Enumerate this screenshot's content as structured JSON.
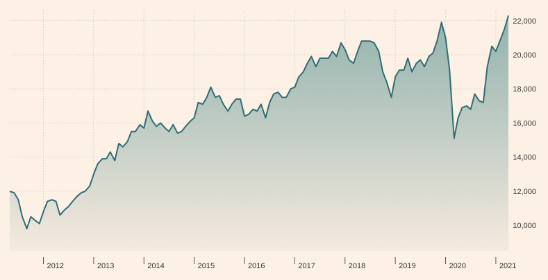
{
  "chart_data": {
    "type": "area",
    "title": "",
    "xlabel": "",
    "ylabel": "",
    "x_ticks": [
      "2012",
      "2013",
      "2014",
      "2015",
      "2016",
      "2017",
      "2018",
      "2019",
      "2020",
      "2021"
    ],
    "y_ticks": [
      "10,000",
      "12,000",
      "14,000",
      "16,000",
      "18,000",
      "20,000",
      "22,000"
    ],
    "y_tick_values": [
      10000,
      12000,
      14000,
      16000,
      18000,
      20000,
      22000
    ],
    "xlim": [
      2011.33,
      2021.25
    ],
    "ylim": [
      8500,
      22600
    ],
    "grid": true,
    "colors": {
      "line": "#2e6e73",
      "area_top": "#7fa8a3",
      "area_bottom": "#f5e9de",
      "background": "#fdf1e6",
      "grid": "#c9c3bb"
    },
    "series": [
      {
        "points": [
          [
            2011.33,
            12000
          ],
          [
            2011.42,
            11900
          ],
          [
            2011.5,
            11500
          ],
          [
            2011.58,
            10500
          ],
          [
            2011.67,
            9800
          ],
          [
            2011.75,
            10500
          ],
          [
            2011.83,
            10300
          ],
          [
            2011.92,
            10100
          ],
          [
            2012.0,
            10800
          ],
          [
            2012.08,
            11400
          ],
          [
            2012.17,
            11500
          ],
          [
            2012.25,
            11400
          ],
          [
            2012.33,
            10600
          ],
          [
            2012.42,
            10900
          ],
          [
            2012.5,
            11100
          ],
          [
            2012.58,
            11400
          ],
          [
            2012.67,
            11700
          ],
          [
            2012.75,
            11900
          ],
          [
            2012.83,
            12000
          ],
          [
            2012.92,
            12300
          ],
          [
            2013.0,
            13000
          ],
          [
            2013.08,
            13600
          ],
          [
            2013.17,
            13900
          ],
          [
            2013.25,
            13900
          ],
          [
            2013.33,
            14300
          ],
          [
            2013.42,
            13800
          ],
          [
            2013.5,
            14800
          ],
          [
            2013.58,
            14600
          ],
          [
            2013.67,
            14900
          ],
          [
            2013.75,
            15500
          ],
          [
            2013.83,
            15500
          ],
          [
            2013.92,
            15900
          ],
          [
            2014.0,
            15700
          ],
          [
            2014.08,
            16700
          ],
          [
            2014.17,
            16100
          ],
          [
            2014.25,
            15800
          ],
          [
            2014.33,
            16000
          ],
          [
            2014.42,
            15700
          ],
          [
            2014.5,
            15500
          ],
          [
            2014.58,
            15900
          ],
          [
            2014.67,
            15400
          ],
          [
            2014.75,
            15500
          ],
          [
            2014.83,
            15800
          ],
          [
            2014.92,
            16100
          ],
          [
            2015.0,
            16300
          ],
          [
            2015.08,
            17200
          ],
          [
            2015.17,
            17100
          ],
          [
            2015.25,
            17500
          ],
          [
            2015.33,
            18100
          ],
          [
            2015.42,
            17500
          ],
          [
            2015.5,
            17600
          ],
          [
            2015.58,
            17100
          ],
          [
            2015.67,
            16700
          ],
          [
            2015.75,
            17100
          ],
          [
            2015.83,
            17400
          ],
          [
            2015.92,
            17400
          ],
          [
            2016.0,
            16400
          ],
          [
            2016.08,
            16500
          ],
          [
            2016.17,
            16800
          ],
          [
            2016.25,
            16700
          ],
          [
            2016.33,
            17100
          ],
          [
            2016.42,
            16300
          ],
          [
            2016.5,
            17200
          ],
          [
            2016.58,
            17700
          ],
          [
            2016.67,
            17800
          ],
          [
            2016.75,
            17500
          ],
          [
            2016.83,
            17500
          ],
          [
            2016.92,
            18000
          ],
          [
            2017.0,
            18100
          ],
          [
            2017.08,
            18700
          ],
          [
            2017.17,
            19000
          ],
          [
            2017.25,
            19500
          ],
          [
            2017.33,
            19900
          ],
          [
            2017.42,
            19300
          ],
          [
            2017.5,
            19800
          ],
          [
            2017.58,
            19800
          ],
          [
            2017.67,
            19800
          ],
          [
            2017.75,
            20200
          ],
          [
            2017.83,
            19900
          ],
          [
            2017.92,
            20700
          ],
          [
            2018.0,
            20300
          ],
          [
            2018.08,
            19700
          ],
          [
            2018.17,
            19500
          ],
          [
            2018.25,
            20200
          ],
          [
            2018.33,
            20800
          ],
          [
            2018.42,
            20800
          ],
          [
            2018.5,
            20800
          ],
          [
            2018.58,
            20700
          ],
          [
            2018.67,
            20200
          ],
          [
            2018.75,
            19000
          ],
          [
            2018.83,
            18400
          ],
          [
            2018.92,
            17500
          ],
          [
            2019.0,
            18700
          ],
          [
            2019.08,
            19100
          ],
          [
            2019.17,
            19100
          ],
          [
            2019.25,
            19800
          ],
          [
            2019.33,
            19000
          ],
          [
            2019.42,
            19500
          ],
          [
            2019.5,
            19700
          ],
          [
            2019.58,
            19300
          ],
          [
            2019.67,
            19900
          ],
          [
            2019.75,
            20100
          ],
          [
            2019.83,
            20800
          ],
          [
            2019.92,
            21900
          ],
          [
            2020.0,
            21000
          ],
          [
            2020.08,
            19100
          ],
          [
            2020.17,
            15100
          ],
          [
            2020.25,
            16300
          ],
          [
            2020.33,
            16900
          ],
          [
            2020.42,
            17000
          ],
          [
            2020.5,
            16800
          ],
          [
            2020.58,
            17700
          ],
          [
            2020.67,
            17300
          ],
          [
            2020.75,
            17200
          ],
          [
            2020.83,
            19300
          ],
          [
            2020.92,
            20500
          ],
          [
            2021.0,
            20200
          ],
          [
            2021.08,
            20800
          ],
          [
            2021.17,
            21500
          ],
          [
            2021.25,
            22300
          ]
        ]
      }
    ]
  }
}
